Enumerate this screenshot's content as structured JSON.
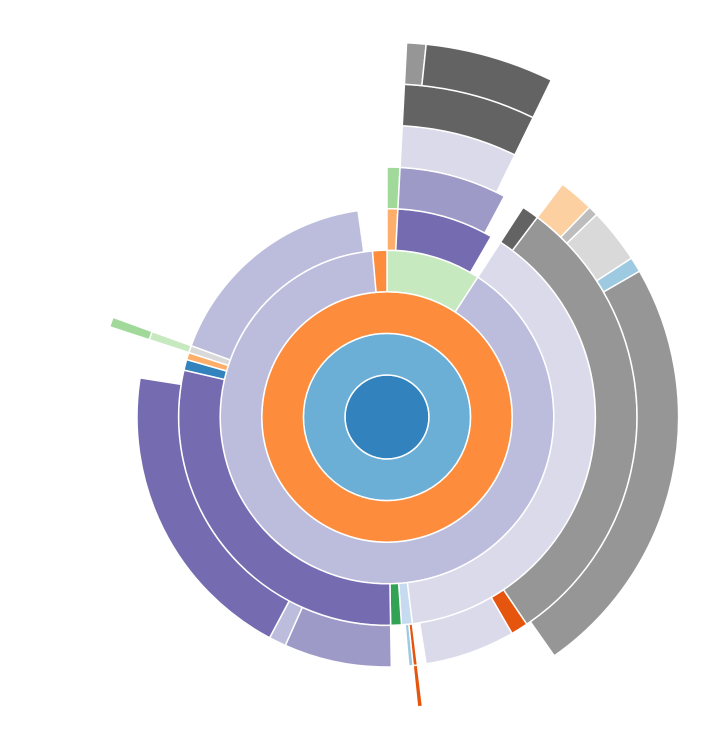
{
  "chart_data": {
    "type": "sunburst",
    "root": {
      "color": "#3182bd",
      "value": 360,
      "children": [
        {
          "color": "#6baed6",
          "value": 360,
          "children": [
            {
              "color": "#fd8d3c",
              "value": 360,
              "children": [
                {
                  "color": "#c7e9c0",
                  "value": 33,
                  "children": [
                    {
                      "color": "#fdae6b",
                      "value": 3,
                      "children": [
                        {
                          "color": "#a1d99b",
                          "value": 3
                        }
                      ]
                    },
                    {
                      "color": "#756bb1",
                      "value": 27,
                      "children": [
                        {
                          "color": "#9e9ac8",
                          "value": 25,
                          "children": [
                            {
                              "color": "#dadaeb",
                              "value": 23,
                              "children": [
                                {
                                  "color": "#636363",
                                  "value": 23,
                                  "children": [
                                    {
                                      "color": "#969696",
                                      "value": 3
                                    },
                                    {
                                      "color": "#636363",
                                      "value": 20
                                    }
                                  ]
                                }
                              ]
                            }
                          ]
                        }
                      ]
                    }
                  ]
                },
                {
                  "color": "#bcbddc",
                  "value": 322,
                  "children": [
                    {
                      "color": "#dadaeb",
                      "value": 140,
                      "children": [
                        {
                          "color": "#636363",
                          "value": 4
                        },
                        {
                          "color": "#969696",
                          "value": 109,
                          "children": [
                            {
                              "color": "#fdd0a2",
                              "value": 7
                            },
                            {
                              "color": "#bdbdbd",
                              "value": 2
                            },
                            {
                              "color": "#d9d9d9",
                              "value": 11
                            },
                            {
                              "color": "#9ecae1",
                              "value": 3
                            },
                            {
                              "color": "#969696",
                              "value": 85
                            }
                          ]
                        },
                        {
                          "color": "#e6550d",
                          "value": 4
                        },
                        {
                          "color": "#dadaeb",
                          "value": 21
                        }
                      ]
                    },
                    {
                      "color": "#c6dbef",
                      "value": 3,
                      "children": [
                        {
                          "color": "#e6550d",
                          "value": 1,
                          "children": [
                            {
                              "color": "#e6550d",
                              "value": 1
                            }
                          ]
                        },
                        {
                          "color": "#9ecae1",
                          "value": 1
                        }
                      ]
                    },
                    {
                      "color": "#31a354",
                      "value": 3
                    },
                    {
                      "color": "#756bb1",
                      "value": 104,
                      "children": [
                        {
                          "color": "#9e9ac8",
                          "value": 25
                        },
                        {
                          "color": "#bcbddc",
                          "value": 4
                        },
                        {
                          "color": "#756bb1",
                          "value": 71
                        }
                      ]
                    },
                    {
                      "color": "#3182bd",
                      "value": 3
                    },
                    {
                      "color": "#fdae6b",
                      "value": 2
                    },
                    {
                      "color": "#d9d9d9",
                      "value": 2,
                      "children": [
                        {
                          "color": "#c7e9c0",
                          "value": 2,
                          "children": [
                            {
                              "color": "#a1d99b",
                              "value": 2
                            }
                          ]
                        }
                      ]
                    },
                    {
                      "color": "#bcbddc",
                      "value": 62
                    }
                  ]
                },
                {
                  "color": "#fd8d3c",
                  "value": 5
                }
              ]
            }
          ]
        }
      ]
    }
  }
}
